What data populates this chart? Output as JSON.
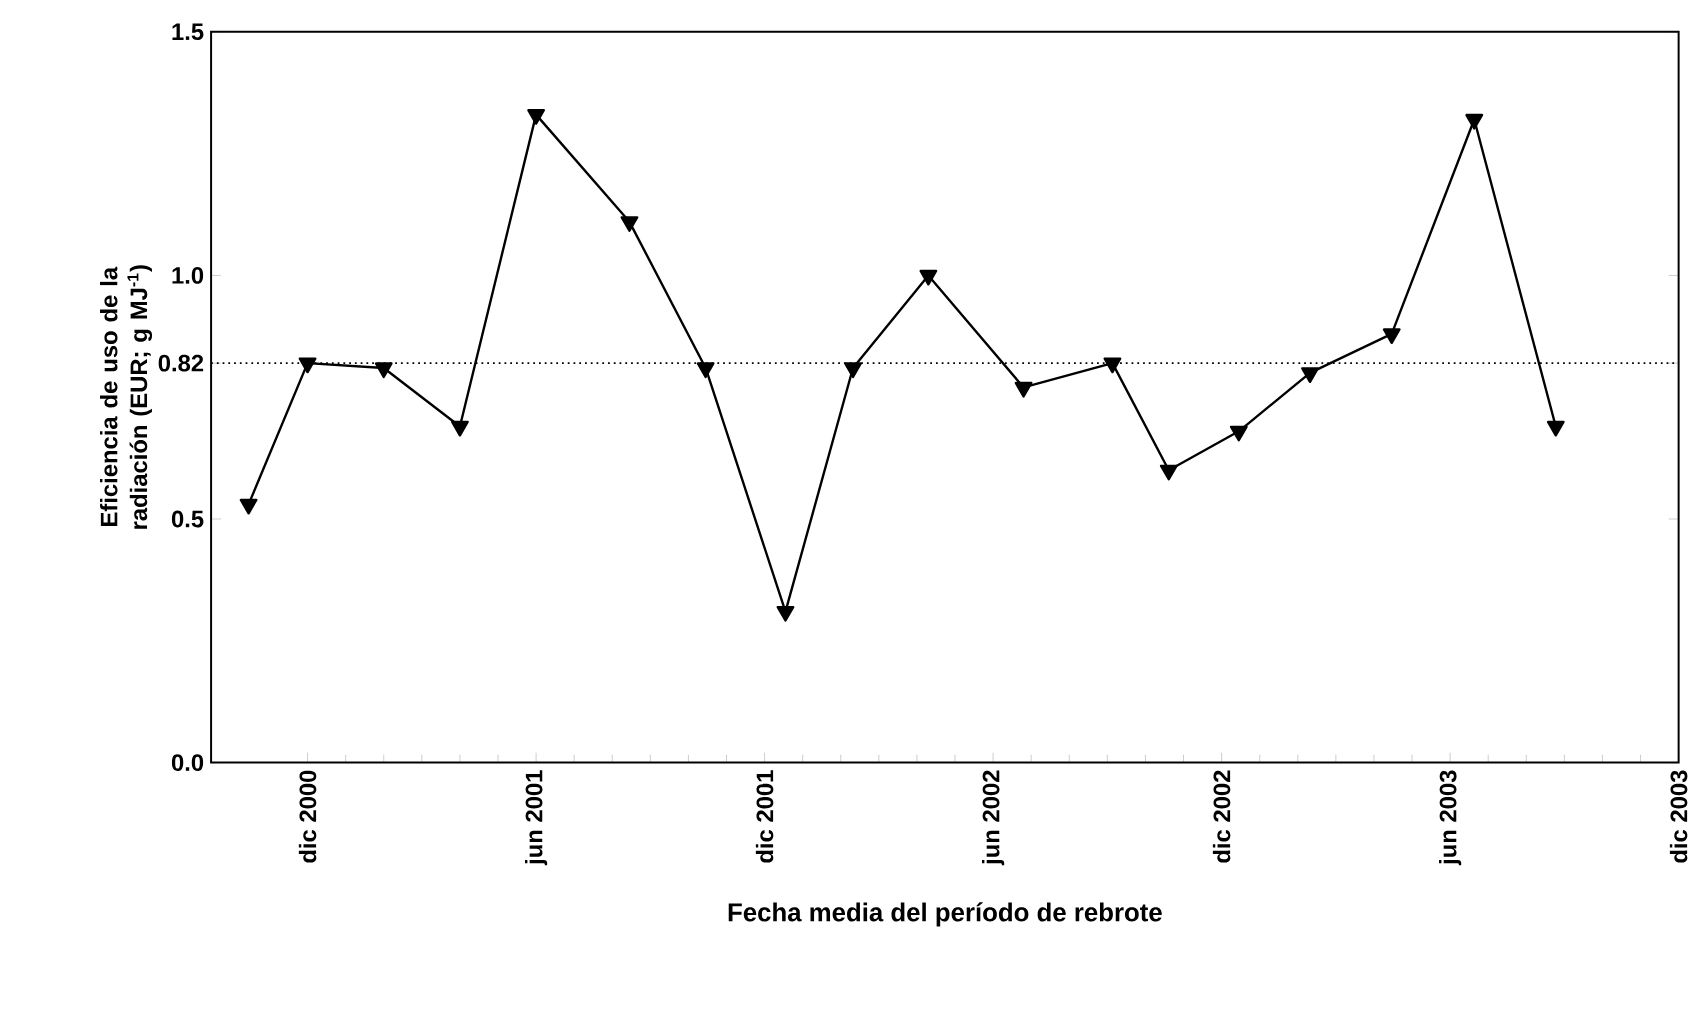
{
  "chart_data": {
    "type": "line",
    "xlabel": "Fecha media del período de rebrote",
    "ylabel": "Eficiencia de uso de la radiación (EUR; g MJ$^{-1}$)",
    "x": [
      "2000-10-15",
      "2000-12-01",
      "2001-02-01",
      "2001-04-01",
      "2001-06-01",
      "2001-08-15",
      "2001-10-15",
      "2001-12-18",
      "2002-02-10",
      "2002-04-10",
      "2002-06-25",
      "2002-09-05",
      "2002-10-20",
      "2002-12-15",
      "2003-02-10",
      "2003-04-15",
      "2003-06-20",
      "2003-08-25"
    ],
    "series": [
      {
        "color": "#000000",
        "values": [
          0.53,
          0.82,
          0.81,
          0.69,
          1.33,
          1.11,
          0.81,
          0.31,
          0.81,
          1.0,
          0.77,
          0.82,
          0.6,
          0.68,
          0.8,
          0.88,
          1.32,
          0.69
        ]
      }
    ],
    "marker": "triangle",
    "line_style": "solid",
    "xlim": [
      "2000-09-15",
      "2003-12-01"
    ],
    "xticks": [
      {
        "value": "2000-12-01",
        "label": "dic 2000"
      },
      {
        "value": "2001-06-01",
        "label": "jun 2001"
      },
      {
        "value": "2001-12-01",
        "label": "dic 2001"
      },
      {
        "value": "2002-06-01",
        "label": "jun 2002"
      },
      {
        "value": "2002-12-01",
        "label": "dic 2002"
      },
      {
        "value": "2003-06-01",
        "label": "jun 2003"
      },
      {
        "value": "2003-12-01",
        "label": "dic 2003"
      }
    ],
    "ylim": [
      0,
      1.5
    ],
    "yticks": [
      {
        "value": 0,
        "label": "0.0"
      },
      0.5,
      0.82,
      {
        "value": 1,
        "label": "1.0"
      },
      1.5
    ],
    "ref_lines": [
      {
        "axis": "y",
        "value": 0.82,
        "color": "#000000",
        "line_style": "dotted"
      }
    ]
  }
}
